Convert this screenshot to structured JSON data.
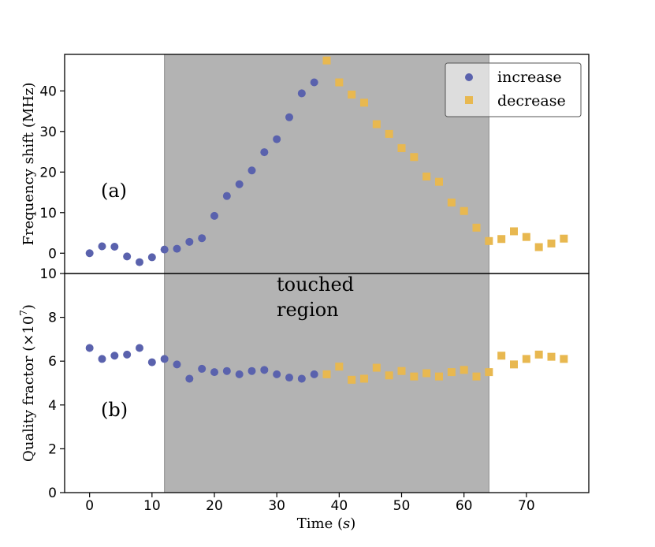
{
  "colors": {
    "increase": "#5a62ad",
    "decrease": "#e8b850",
    "region": "#b3b3b3"
  },
  "chart_data": [
    {
      "type": "scatter",
      "panel": "top",
      "ylabel": "Frequency shift (MHz)",
      "xlim": [
        -4,
        80
      ],
      "ylim": [
        -5,
        49
      ],
      "yticks": [
        0,
        10,
        20,
        30,
        40
      ],
      "annotation": "(a)",
      "region": [
        12,
        64
      ],
      "series": [
        {
          "name": "increase",
          "marker": "circle",
          "x": [
            0,
            2,
            4,
            6,
            8,
            10,
            12,
            14,
            16,
            18,
            20,
            22,
            24,
            26,
            28,
            30,
            32,
            34,
            36
          ],
          "y": [
            0,
            1.7,
            1.6,
            -0.8,
            -2.2,
            -1,
            0.9,
            1.1,
            2.8,
            3.7,
            9.2,
            14.1,
            17,
            20.4,
            24.9,
            28.1,
            33.5,
            39.4,
            42.1
          ]
        },
        {
          "name": "decrease",
          "marker": "square",
          "x": [
            38,
            40,
            42,
            44,
            46,
            48,
            50,
            52,
            54,
            56,
            58,
            60,
            62,
            64,
            66,
            68,
            70,
            72,
            74,
            76
          ],
          "y": [
            47.5,
            42.1,
            39.1,
            37.1,
            31.8,
            29.4,
            25.9,
            23.7,
            18.9,
            17.6,
            12.5,
            10.4,
            6.3,
            3.0,
            3.5,
            5.4,
            4.0,
            1.5,
            2.4,
            3.6
          ]
        }
      ],
      "legend": {
        "placement": "top-right",
        "entries": [
          "increase",
          "decrease"
        ]
      }
    },
    {
      "type": "scatter",
      "panel": "bottom",
      "ylabel_prefix": "Quality fractor (×10",
      "ylabel_exp": "7",
      "ylabel_suffix": ")",
      "xlabel_prefix": "Time (",
      "xlabel_var": "s",
      "xlabel_suffix": ")",
      "xlim": [
        -4,
        80
      ],
      "ylim": [
        0,
        10
      ],
      "yticks": [
        0,
        2,
        4,
        6,
        8,
        10
      ],
      "xticks": [
        0,
        10,
        20,
        30,
        40,
        50,
        60,
        70
      ],
      "annotation": "(b)",
      "region_label": [
        "touched",
        "region"
      ],
      "region": [
        12,
        64
      ],
      "series": [
        {
          "name": "increase",
          "marker": "circle",
          "x": [
            0,
            2,
            4,
            6,
            8,
            10,
            12,
            14,
            16,
            18,
            20,
            22,
            24,
            26,
            28,
            30,
            32,
            34,
            36
          ],
          "y": [
            6.6,
            6.1,
            6.25,
            6.3,
            6.6,
            5.95,
            6.1,
            5.85,
            5.2,
            5.65,
            5.5,
            5.55,
            5.4,
            5.55,
            5.6,
            5.4,
            5.25,
            5.2,
            5.4
          ]
        },
        {
          "name": "decrease",
          "marker": "square",
          "x": [
            38,
            40,
            42,
            44,
            46,
            48,
            50,
            52,
            54,
            56,
            58,
            60,
            62,
            64,
            66,
            68,
            70,
            72,
            74,
            76
          ],
          "y": [
            5.4,
            5.75,
            5.15,
            5.2,
            5.7,
            5.35,
            5.55,
            5.3,
            5.45,
            5.3,
            5.5,
            5.6,
            5.3,
            5.5,
            6.25,
            5.85,
            6.1,
            6.3,
            6.2,
            6.1
          ]
        }
      ]
    }
  ]
}
